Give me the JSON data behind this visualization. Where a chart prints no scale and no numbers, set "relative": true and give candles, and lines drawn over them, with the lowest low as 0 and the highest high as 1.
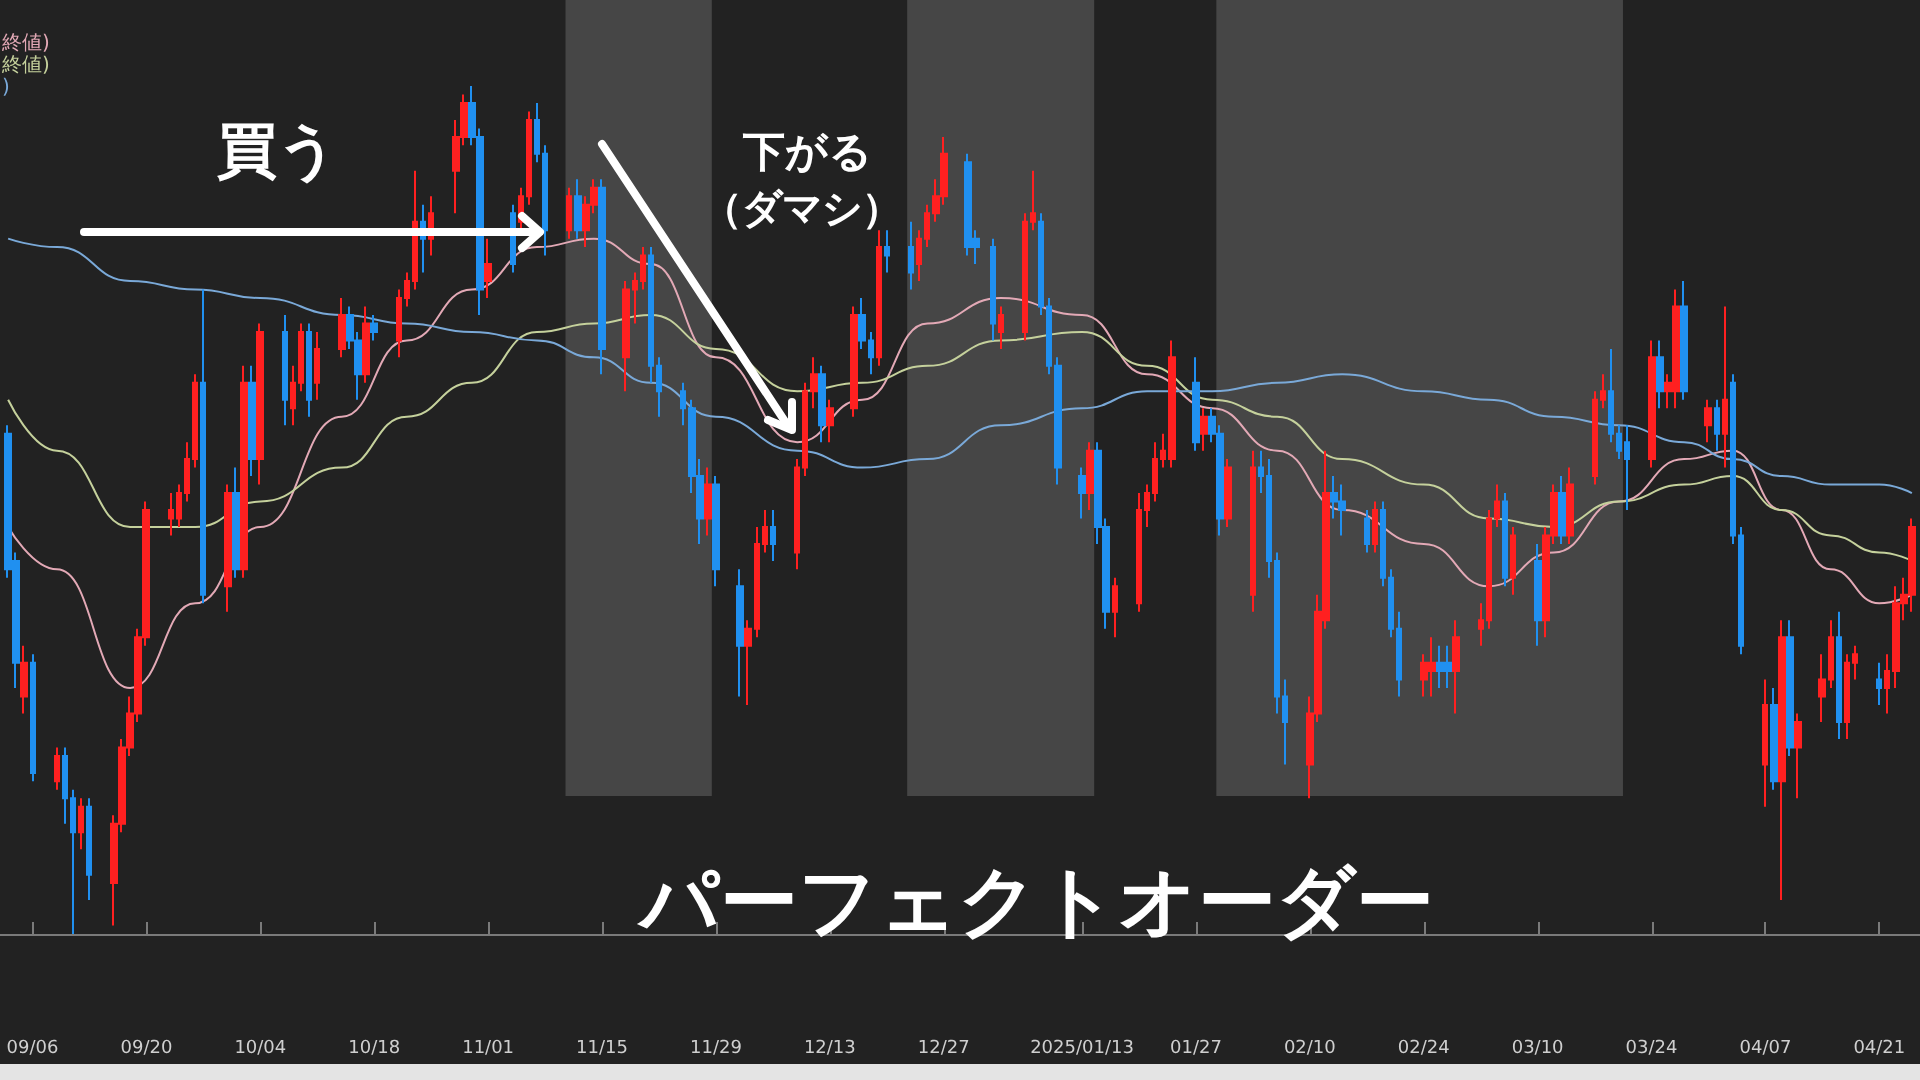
{
  "chart_data": {
    "type": "candlestick",
    "title": "パーフェクトオーダー",
    "annotations": [
      "買う",
      "下がる",
      "（ダマシ）"
    ],
    "x": [
      "2024-09-03",
      "2024-09-04",
      "2024-09-05",
      "2024-09-06",
      "2024-09-09",
      "2024-09-10",
      "2024-09-11",
      "2024-09-12",
      "2024-09-13",
      "2024-09-16",
      "2024-09-17",
      "2024-09-18",
      "2024-09-19",
      "2024-09-20",
      "2024-09-23",
      "2024-09-24",
      "2024-09-25",
      "2024-09-26",
      "2024-09-27",
      "2024-09-30",
      "2024-10-01",
      "2024-10-02",
      "2024-10-03",
      "2024-10-04",
      "2024-10-07",
      "2024-10-08",
      "2024-10-09",
      "2024-10-10",
      "2024-10-11",
      "2024-10-14",
      "2024-10-15",
      "2024-10-16",
      "2024-10-17",
      "2024-10-18",
      "2024-10-21",
      "2024-10-22",
      "2024-10-23",
      "2024-10-24",
      "2024-10-25",
      "2024-10-28",
      "2024-10-29",
      "2024-10-30",
      "2024-10-31",
      "2024-11-01",
      "2024-11-04",
      "2024-11-05",
      "2024-11-06",
      "2024-11-07",
      "2024-11-08",
      "2024-11-11",
      "2024-11-12",
      "2024-11-13",
      "2024-11-14",
      "2024-11-15",
      "2024-11-18",
      "2024-11-19",
      "2024-11-20",
      "2024-11-21",
      "2024-11-22",
      "2024-11-25",
      "2024-11-26",
      "2024-11-27",
      "2024-11-28",
      "2024-11-29",
      "2024-12-02",
      "2024-12-03",
      "2024-12-04",
      "2024-12-05",
      "2024-12-06",
      "2024-12-09",
      "2024-12-10",
      "2024-12-11",
      "2024-12-12",
      "2024-12-13",
      "2024-12-16",
      "2024-12-17",
      "2024-12-18",
      "2024-12-19",
      "2024-12-20",
      "2024-12-23",
      "2024-12-24",
      "2024-12-25",
      "2024-12-26",
      "2024-12-27",
      "2024-12-30",
      "2024-12-31",
      "2025-01-02",
      "2025-01-03",
      "2025-01-06",
      "2025-01-07",
      "2025-01-08",
      "2025-01-09",
      "2025-01-10",
      "2025-01-13",
      "2025-01-14",
      "2025-01-15",
      "2025-01-16",
      "2025-01-17",
      "2025-01-20",
      "2025-01-21",
      "2025-01-22",
      "2025-01-23",
      "2025-01-24",
      "2025-01-27",
      "2025-01-28",
      "2025-01-29",
      "2025-01-30",
      "2025-01-31",
      "2025-02-03",
      "2025-02-04",
      "2025-02-05",
      "2025-02-06",
      "2025-02-07",
      "2025-02-10",
      "2025-02-11",
      "2025-02-12",
      "2025-02-13",
      "2025-02-14",
      "2025-02-17",
      "2025-02-18",
      "2025-02-19",
      "2025-02-20",
      "2025-02-21",
      "2025-02-24",
      "2025-02-25",
      "2025-02-26",
      "2025-02-27",
      "2025-02-28",
      "2025-03-03",
      "2025-03-04",
      "2025-03-05",
      "2025-03-06",
      "2025-03-07",
      "2025-03-10",
      "2025-03-11",
      "2025-03-12",
      "2025-03-13",
      "2025-03-14",
      "2025-03-17",
      "2025-03-18",
      "2025-03-19",
      "2025-03-20",
      "2025-03-21",
      "2025-03-24",
      "2025-03-25",
      "2025-03-26",
      "2025-03-27",
      "2025-03-28",
      "2025-03-31",
      "2025-04-01",
      "2025-04-02",
      "2025-04-03",
      "2025-04-04",
      "2025-04-07",
      "2025-04-08",
      "2025-04-09",
      "2025-04-10",
      "2025-04-11",
      "2025-04-14",
      "2025-04-15",
      "2025-04-16",
      "2025-04-17",
      "2025-04-18",
      "2025-04-21",
      "2025-04-22",
      "2025-04-23",
      "2025-04-24",
      "2025-04-25"
    ],
    "xlim": [
      "2024-09-02",
      "2025-04-26"
    ],
    "ohlc": [
      [
        0.59,
        0.6,
        0.42,
        0.43
      ],
      [
        0.44,
        0.45,
        0.29,
        0.32
      ],
      [
        0.28,
        0.34,
        0.26,
        0.32
      ],
      [
        0.32,
        0.33,
        0.18,
        0.19
      ],
      [
        0.18,
        0.22,
        0.17,
        0.21
      ],
      [
        0.21,
        0.22,
        0.13,
        0.16
      ],
      [
        0.16,
        0.17,
        0,
        0.12
      ],
      [
        0.12,
        0.16,
        0.1,
        0.15
      ],
      [
        0.15,
        0.16,
        0.04,
        0.07
      ],
      [
        0.06,
        0.14,
        0.01,
        0.13
      ],
      [
        0.13,
        0.23,
        0.12,
        0.22
      ],
      [
        0.22,
        0.28,
        0.21,
        0.26
      ],
      [
        0.26,
        0.36,
        0.25,
        0.35
      ],
      [
        0.35,
        0.51,
        0.34,
        0.5
      ],
      [
        0.49,
        0.52,
        0.47,
        0.5
      ],
      [
        0.49,
        0.53,
        0.48,
        0.52
      ],
      [
        0.52,
        0.58,
        0.51,
        0.56
      ],
      [
        0.56,
        0.66,
        0.55,
        0.65
      ],
      [
        0.65,
        0.76,
        0.39,
        0.4
      ],
      [
        0.41,
        0.53,
        0.38,
        0.52
      ],
      [
        0.52,
        0.55,
        0.42,
        0.43
      ],
      [
        0.43,
        0.67,
        0.42,
        0.65
      ],
      [
        0.65,
        0.67,
        0.54,
        0.56
      ],
      [
        0.56,
        0.72,
        0.53,
        0.71
      ],
      [
        0.71,
        0.73,
        0.6,
        0.63
      ],
      [
        0.62,
        0.67,
        0.6,
        0.65
      ],
      [
        0.65,
        0.72,
        0.64,
        0.71
      ],
      [
        0.71,
        0.72,
        0.61,
        0.63
      ],
      [
        0.65,
        0.71,
        0.63,
        0.69
      ],
      [
        0.69,
        0.75,
        0.68,
        0.73
      ],
      [
        0.73,
        0.74,
        0.69,
        0.7
      ],
      [
        0.7,
        0.71,
        0.63,
        0.66
      ],
      [
        0.66,
        0.74,
        0.65,
        0.72
      ],
      [
        0.72,
        0.73,
        0.7,
        0.71
      ],
      [
        0.7,
        0.76,
        0.68,
        0.75
      ],
      [
        0.75,
        0.78,
        0.74,
        0.77
      ],
      [
        0.77,
        0.9,
        0.76,
        0.84
      ],
      [
        0.84,
        0.86,
        0.78,
        0.82
      ],
      [
        0.82,
        0.87,
        0.8,
        0.85
      ],
      [
        0.9,
        0.96,
        0.85,
        0.94
      ],
      [
        0.94,
        0.99,
        0.93,
        0.98
      ],
      [
        0.98,
        1,
        0.93,
        0.94
      ],
      [
        0.94,
        0.95,
        0.73,
        0.76
      ],
      [
        0.77,
        0.82,
        0.75,
        0.79
      ],
      [
        0.85,
        0.86,
        0.78,
        0.79
      ],
      [
        0.84,
        0.88,
        0.83,
        0.87
      ],
      [
        0.87,
        0.97,
        0.86,
        0.96
      ],
      [
        0.96,
        0.98,
        0.91,
        0.92
      ],
      [
        0.92,
        0.93,
        0.8,
        0.83
      ],
      [
        0.83,
        0.88,
        0.82,
        0.87
      ],
      [
        0.87,
        0.89,
        0.82,
        0.83
      ],
      [
        0.83,
        0.87,
        0.81,
        0.86
      ],
      [
        0.86,
        0.89,
        0.85,
        0.88
      ],
      [
        0.88,
        0.89,
        0.66,
        0.69
      ],
      [
        0.68,
        0.77,
        0.64,
        0.76
      ],
      [
        0.76,
        0.78,
        0.72,
        0.77
      ],
      [
        0.77,
        0.81,
        0.76,
        0.8
      ],
      [
        0.8,
        0.81,
        0.65,
        0.67
      ],
      [
        0.67,
        0.68,
        0.61,
        0.64
      ],
      [
        0.64,
        0.65,
        0.6,
        0.62
      ],
      [
        0.62,
        0.63,
        0.52,
        0.54
      ],
      [
        0.54,
        0.56,
        0.46,
        0.49
      ],
      [
        0.49,
        0.55,
        0.47,
        0.53
      ],
      [
        0.53,
        0.54,
        0.41,
        0.43
      ],
      [
        0.41,
        0.43,
        0.28,
        0.34
      ],
      [
        0.34,
        0.37,
        0.27,
        0.36
      ],
      [
        0.36,
        0.48,
        0.35,
        0.46
      ],
      [
        0.46,
        0.5,
        0.45,
        0.48
      ],
      [
        0.48,
        0.5,
        0.44,
        0.46
      ],
      [
        0.45,
        0.56,
        0.43,
        0.55
      ],
      [
        0.55,
        0.65,
        0.54,
        0.64
      ],
      [
        0.64,
        0.68,
        0.62,
        0.66
      ],
      [
        0.66,
        0.67,
        0.58,
        0.6
      ],
      [
        0.6,
        0.63,
        0.58,
        0.62
      ],
      [
        0.62,
        0.74,
        0.61,
        0.73
      ],
      [
        0.73,
        0.75,
        0.69,
        0.7
      ],
      [
        0.7,
        0.71,
        0.66,
        0.68
      ],
      [
        0.68,
        0.83,
        0.67,
        0.81
      ],
      [
        0.81,
        0.83,
        0.78,
        0.8
      ],
      [
        0.81,
        0.84,
        0.76,
        0.78
      ],
      [
        0.79,
        0.83,
        0.77,
        0.82
      ],
      [
        0.82,
        0.86,
        0.81,
        0.85
      ],
      [
        0.85,
        0.89,
        0.84,
        0.87
      ],
      [
        0.87,
        0.94,
        0.86,
        0.92
      ],
      [
        0.91,
        0.92,
        0.8,
        0.81
      ],
      [
        0.82,
        0.83,
        0.79,
        0.81
      ],
      [
        0.81,
        0.82,
        0.7,
        0.72
      ],
      [
        0.71,
        0.74,
        0.69,
        0.73
      ],
      [
        0.71,
        0.85,
        0.7,
        0.84
      ],
      [
        0.84,
        0.9,
        0.83,
        0.85
      ],
      [
        0.84,
        0.85,
        0.73,
        0.74
      ],
      [
        0.74,
        0.75,
        0.66,
        0.67
      ],
      [
        0.67,
        0.68,
        0.53,
        0.55
      ],
      [
        0.54,
        0.55,
        0.49,
        0.52
      ],
      [
        0.52,
        0.58,
        0.5,
        0.57
      ],
      [
        0.57,
        0.58,
        0.46,
        0.48
      ],
      [
        0.48,
        0.49,
        0.36,
        0.38
      ],
      [
        0.38,
        0.42,
        0.35,
        0.41
      ],
      [
        0.39,
        0.52,
        0.38,
        0.5
      ],
      [
        0.5,
        0.53,
        0.48,
        0.52
      ],
      [
        0.52,
        0.58,
        0.51,
        0.56
      ],
      [
        0.56,
        0.59,
        0.55,
        0.57
      ],
      [
        0.56,
        0.7,
        0.55,
        0.68
      ],
      [
        0.65,
        0.68,
        0.57,
        0.58
      ],
      [
        0.59,
        0.62,
        0.57,
        0.61
      ],
      [
        0.61,
        0.62,
        0.58,
        0.59
      ],
      [
        0.59,
        0.6,
        0.47,
        0.49
      ],
      [
        0.49,
        0.56,
        0.48,
        0.55
      ],
      [
        0.4,
        0.57,
        0.38,
        0.55
      ],
      [
        0.55,
        0.57,
        0.52,
        0.54
      ],
      [
        0.54,
        0.56,
        0.42,
        0.44
      ],
      [
        0.44,
        0.45,
        0.26,
        0.28
      ],
      [
        0.28,
        0.3,
        0.2,
        0.25
      ],
      [
        0.2,
        0.28,
        0.16,
        0.26
      ],
      [
        0.26,
        0.4,
        0.25,
        0.38
      ],
      [
        0.37,
        0.57,
        0.36,
        0.52
      ],
      [
        0.52,
        0.54,
        0.49,
        0.51
      ],
      [
        0.51,
        0.53,
        0.47,
        0.5
      ],
      [
        0.49,
        0.5,
        0.45,
        0.46
      ],
      [
        0.46,
        0.51,
        0.45,
        0.5
      ],
      [
        0.5,
        0.51,
        0.41,
        0.42
      ],
      [
        0.42,
        0.43,
        0.35,
        0.36
      ],
      [
        0.36,
        0.38,
        0.28,
        0.3
      ],
      [
        0.3,
        0.33,
        0.28,
        0.32
      ],
      [
        0.31,
        0.35,
        0.28,
        0.32
      ],
      [
        0.32,
        0.34,
        0.29,
        0.31
      ],
      [
        0.32,
        0.34,
        0.29,
        0.31
      ],
      [
        0.31,
        0.37,
        0.26,
        0.35
      ],
      [
        0.36,
        0.39,
        0.34,
        0.37
      ],
      [
        0.37,
        0.5,
        0.36,
        0.49
      ],
      [
        0.49,
        0.53,
        0.48,
        0.51
      ],
      [
        0.51,
        0.52,
        0.41,
        0.42
      ],
      [
        0.42,
        0.48,
        0.4,
        0.47
      ],
      [
        0.44,
        0.46,
        0.34,
        0.37
      ],
      [
        0.37,
        0.48,
        0.35,
        0.47
      ],
      [
        0.47,
        0.53,
        0.46,
        0.52
      ],
      [
        0.52,
        0.54,
        0.46,
        0.47
      ],
      [
        0.47,
        0.55,
        0.46,
        0.53
      ],
      [
        0.54,
        0.64,
        0.53,
        0.63
      ],
      [
        0.63,
        0.66,
        0.62,
        0.64
      ],
      [
        0.64,
        0.69,
        0.58,
        0.59
      ],
      [
        0.59,
        0.6,
        0.56,
        0.57
      ],
      [
        0.58,
        0.6,
        0.5,
        0.56
      ],
      [
        0.56,
        0.7,
        0.55,
        0.68
      ],
      [
        0.68,
        0.7,
        0.62,
        0.64
      ],
      [
        0.64,
        0.66,
        0.62,
        0.65
      ],
      [
        0.64,
        0.76,
        0.62,
        0.74
      ],
      [
        0.74,
        0.77,
        0.63,
        0.64
      ],
      [
        0.6,
        0.63,
        0.58,
        0.62
      ],
      [
        0.62,
        0.63,
        0.57,
        0.59
      ],
      [
        0.59,
        0.74,
        0.55,
        0.63
      ],
      [
        0.65,
        0.66,
        0.46,
        0.47
      ],
      [
        0.47,
        0.48,
        0.33,
        0.34
      ],
      [
        0.2,
        0.3,
        0.15,
        0.27
      ],
      [
        0.27,
        0.29,
        0.17,
        0.18
      ],
      [
        0.18,
        0.37,
        0.04,
        0.35
      ],
      [
        0.35,
        0.37,
        0.21,
        0.22
      ],
      [
        0.22,
        0.26,
        0.16,
        0.25
      ],
      [
        0.28,
        0.33,
        0.25,
        0.3
      ],
      [
        0.3,
        0.37,
        0.29,
        0.35
      ],
      [
        0.35,
        0.38,
        0.23,
        0.25
      ],
      [
        0.25,
        0.33,
        0.23,
        0.32
      ],
      [
        0.32,
        0.34,
        0.3,
        0.33
      ],
      [
        0.3,
        0.32,
        0.27,
        0.29
      ],
      [
        0.29,
        0.33,
        0.26,
        0.31
      ],
      [
        0.31,
        0.41,
        0.29,
        0.39
      ],
      [
        0.39,
        0.42,
        0.37,
        0.4
      ],
      [
        0.4,
        0.49,
        0.38,
        0.48
      ]
    ],
    "colors": [
      "#2090f0",
      "#2090f0",
      "#ff2020",
      "#2090f0",
      "#ff2020",
      "#2090f0",
      "#2090f0",
      "#ff2020",
      "#2090f0",
      "#ff2020",
      "#ff2020",
      "#ff2020",
      "#ff2020",
      "#ff2020",
      "#ff2020",
      "#ff2020",
      "#ff2020",
      "#ff2020",
      "#2090f0",
      "#ff2020",
      "#2090f0",
      "#ff2020",
      "#2090f0",
      "#ff2020",
      "#2090f0",
      "#ff2020",
      "#ff2020",
      "#2090f0",
      "#ff2020",
      "#ff2020",
      "#2090f0",
      "#2090f0",
      "#ff2020",
      "#2090f0",
      "#ff2020",
      "#ff2020",
      "#ff2020",
      "#2090f0",
      "#ff2020",
      "#ff2020",
      "#ff2020",
      "#2090f0",
      "#2090f0",
      "#ff2020",
      "#2090f0",
      "#ff2020",
      "#ff2020",
      "#2090f0",
      "#2090f0",
      "#ff2020",
      "#2090f0",
      "#ff2020",
      "#ff2020",
      "#2090f0",
      "#ff2020",
      "#ff2020",
      "#ff2020",
      "#2090f0",
      "#2090f0",
      "#2090f0",
      "#2090f0",
      "#2090f0",
      "#ff2020",
      "#2090f0",
      "#2090f0",
      "#ff2020",
      "#ff2020",
      "#ff2020",
      "#2090f0",
      "#ff2020",
      "#ff2020",
      "#ff2020",
      "#2090f0",
      "#ff2020",
      "#ff2020",
      "#2090f0",
      "#2090f0",
      "#ff2020",
      "#2090f0",
      "#2090f0",
      "#ff2020",
      "#ff2020",
      "#ff2020",
      "#ff2020",
      "#2090f0",
      "#2090f0",
      "#2090f0",
      "#ff2020",
      "#ff2020",
      "#ff2020",
      "#2090f0",
      "#2090f0",
      "#2090f0",
      "#2090f0",
      "#ff2020",
      "#2090f0",
      "#2090f0",
      "#ff2020",
      "#ff2020",
      "#ff2020",
      "#ff2020",
      "#ff2020",
      "#ff2020",
      "#2090f0",
      "#ff2020",
      "#2090f0",
      "#2090f0",
      "#ff2020",
      "#ff2020",
      "#2090f0",
      "#2090f0",
      "#2090f0",
      "#2090f0",
      "#ff2020",
      "#ff2020",
      "#ff2020",
      "#2090f0",
      "#2090f0",
      "#2090f0",
      "#ff2020",
      "#2090f0",
      "#2090f0",
      "#2090f0",
      "#ff2020",
      "#ff2020",
      "#2090f0",
      "#2090f0",
      "#ff2020",
      "#ff2020",
      "#ff2020",
      "#ff2020",
      "#2090f0",
      "#ff2020",
      "#2090f0",
      "#ff2020",
      "#ff2020",
      "#2090f0",
      "#ff2020",
      "#ff2020",
      "#ff2020",
      "#2090f0",
      "#2090f0",
      "#2090f0",
      "#ff2020",
      "#2090f0",
      "#ff2020",
      "#ff2020",
      "#2090f0",
      "#ff2020",
      "#2090f0",
      "#ff2020",
      "#2090f0",
      "#2090f0",
      "#ff2020",
      "#2090f0",
      "#ff2020",
      "#2090f0",
      "#ff2020",
      "#ff2020",
      "#ff2020",
      "#2090f0",
      "#ff2020",
      "#ff2020",
      "#2090f0",
      "#ff2020",
      "#ff2020",
      "#ff2020",
      "#ff2020"
    ],
    "xticks": [
      {
        "value": "2024-09-06",
        "label": "09/06"
      },
      {
        "value": "2024-09-20",
        "label": "09/20"
      },
      {
        "value": "2024-10-04",
        "label": "10/04"
      },
      {
        "value": "2024-10-18",
        "label": "10/18"
      },
      {
        "value": "2024-11-01",
        "label": "11/01"
      },
      {
        "value": "2024-11-15",
        "label": "11/15"
      },
      {
        "value": "2024-11-29",
        "label": "11/29"
      },
      {
        "value": "2024-12-13",
        "label": "12/13"
      },
      {
        "value": "2024-12-27",
        "label": "12/27"
      },
      {
        "value": "2025-01-13",
        "label": "2025/01/13"
      },
      {
        "value": "2025-01-27",
        "label": "01/27"
      },
      {
        "value": "2025-02-10",
        "label": "02/10"
      },
      {
        "value": "2025-02-24",
        "label": "02/24"
      },
      {
        "value": "2025-03-10",
        "label": "03/10"
      },
      {
        "value": "2025-03-24",
        "label": "03/24"
      },
      {
        "value": "2025-04-07",
        "label": "04/07"
      },
      {
        "value": "2025-04-21",
        "label": "04/21"
      }
    ],
    "series": [
      {
        "type": "line",
        "name": "終値)",
        "color": "#e3a9b6",
        "x": [
          "2024-09-03",
          "2024-09-09",
          "2024-09-18",
          "2024-09-26",
          "2024-10-04",
          "2024-10-14",
          "2024-10-22",
          "2024-10-30",
          "2024-11-07",
          "2024-11-14",
          "2024-11-21",
          "2024-11-29",
          "2024-12-09",
          "2024-12-17",
          "2024-12-25",
          "2025-01-03",
          "2025-01-13",
          "2025-01-21",
          "2025-01-29",
          "2025-02-06",
          "2025-02-14",
          "2025-02-24",
          "2025-03-04",
          "2025-03-12",
          "2025-03-20",
          "2025-03-28",
          "2025-04-03",
          "2025-04-09",
          "2025-04-15",
          "2025-04-21",
          "2025-04-25"
        ],
        "values": [
          0.48,
          0.43,
          0.29,
          0.39,
          0.48,
          0.61,
          0.7,
          0.76,
          0.81,
          0.82,
          0.79,
          0.68,
          0.58,
          0.63,
          0.72,
          0.75,
          0.73,
          0.66,
          0.62,
          0.57,
          0.5,
          0.46,
          0.41,
          0.45,
          0.51,
          0.56,
          0.57,
          0.5,
          0.43,
          0.39,
          0.4
        ]
      },
      {
        "type": "line",
        "name": "終値)",
        "color": "#c5d19c",
        "x": [
          "2024-09-03",
          "2024-09-09",
          "2024-09-18",
          "2024-09-26",
          "2024-10-04",
          "2024-10-14",
          "2024-10-22",
          "2024-10-30",
          "2024-11-07",
          "2024-11-14",
          "2024-11-21",
          "2024-11-29",
          "2024-12-09",
          "2024-12-17",
          "2024-12-25",
          "2025-01-03",
          "2025-01-13",
          "2025-01-21",
          "2025-01-29",
          "2025-02-06",
          "2025-02-14",
          "2025-02-24",
          "2025-03-04",
          "2025-03-12",
          "2025-03-20",
          "2025-03-28",
          "2025-04-03",
          "2025-04-09",
          "2025-04-15",
          "2025-04-21",
          "2025-04-25"
        ],
        "values": [
          0.63,
          0.57,
          0.48,
          0.48,
          0.51,
          0.55,
          0.61,
          0.65,
          0.71,
          0.72,
          0.73,
          0.69,
          0.64,
          0.65,
          0.67,
          0.7,
          0.71,
          0.67,
          0.63,
          0.61,
          0.56,
          0.53,
          0.49,
          0.48,
          0.51,
          0.53,
          0.54,
          0.5,
          0.47,
          0.45,
          0.44
        ]
      },
      {
        "type": "line",
        "name": ")",
        "color": "#7aa9d8",
        "x": [
          "2024-09-03",
          "2024-09-09",
          "2024-09-18",
          "2024-09-26",
          "2024-10-04",
          "2024-10-14",
          "2024-10-22",
          "2024-10-30",
          "2024-11-07",
          "2024-11-14",
          "2024-11-21",
          "2024-11-29",
          "2024-12-09",
          "2024-12-17",
          "2024-12-25",
          "2025-01-03",
          "2025-01-13",
          "2025-01-21",
          "2025-01-29",
          "2025-02-06",
          "2025-02-14",
          "2025-02-24",
          "2025-03-04",
          "2025-03-12",
          "2025-03-20",
          "2025-03-28",
          "2025-04-03",
          "2025-04-09",
          "2025-04-15",
          "2025-04-21",
          "2025-04-25"
        ],
        "values": [
          0.82,
          0.81,
          0.77,
          0.76,
          0.75,
          0.73,
          0.72,
          0.71,
          0.7,
          0.68,
          0.65,
          0.61,
          0.57,
          0.55,
          0.56,
          0.6,
          0.62,
          0.64,
          0.64,
          0.65,
          0.66,
          0.64,
          0.63,
          0.61,
          0.6,
          0.58,
          0.56,
          0.54,
          0.53,
          0.53,
          0.52
        ]
      }
    ],
    "bands": [
      {
        "axis": "x",
        "from": "2024-11-11",
        "to": "2024-11-28",
        "color": "#464646"
      },
      {
        "axis": "x",
        "from": "2024-12-23",
        "to": "2025-01-14",
        "color": "#464646"
      },
      {
        "axis": "x",
        "from": "2025-01-30",
        "to": "2025-03-20",
        "color": "#464646"
      }
    ],
    "relative": true,
    "legend": "top left",
    "marker": "none",
    "tick_labels": "x"
  }
}
